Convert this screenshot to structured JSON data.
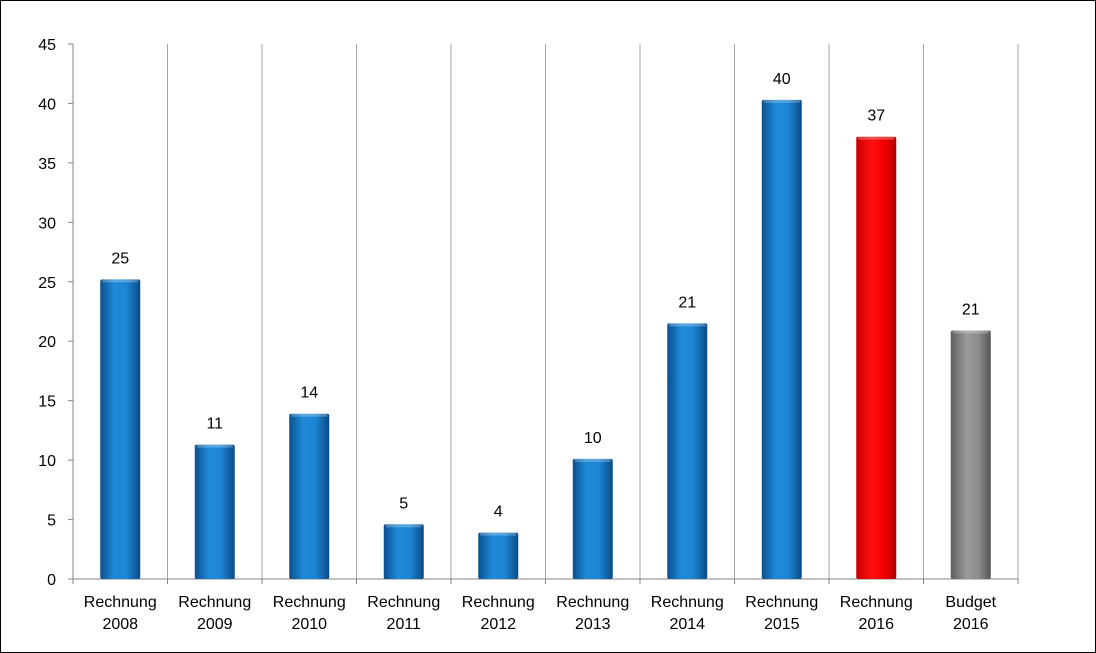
{
  "chart_data": {
    "type": "bar",
    "categories": [
      [
        "Rechnung",
        "2008"
      ],
      [
        "Rechnung",
        "2009"
      ],
      [
        "Rechnung",
        "2010"
      ],
      [
        "Rechnung",
        "2011"
      ],
      [
        "Rechnung",
        "2012"
      ],
      [
        "Rechnung",
        "2013"
      ],
      [
        "Rechnung",
        "2014"
      ],
      [
        "Rechnung",
        "2015"
      ],
      [
        "Rechnung",
        "2016"
      ],
      [
        "Budget",
        "2016"
      ]
    ],
    "values": [
      25.2,
      11.3,
      13.9,
      4.6,
      3.9,
      10.1,
      21.5,
      40.3,
      37.2,
      20.9
    ],
    "data_labels": [
      "25",
      "11",
      "14",
      "5",
      "4",
      "10",
      "21",
      "40",
      "37",
      "21"
    ],
    "bar_colors": [
      "#1a7fd0",
      "#1a7fd0",
      "#1a7fd0",
      "#1a7fd0",
      "#1a7fd0",
      "#1a7fd0",
      "#1a7fd0",
      "#1a7fd0",
      "#ee0000",
      "#8a8a8a"
    ],
    "title": "",
    "xlabel": "",
    "ylabel": "",
    "ylim": [
      0,
      45
    ],
    "yticks": [
      0,
      5,
      10,
      15,
      20,
      25,
      30,
      35,
      40,
      45
    ],
    "grid": "vertical category separators",
    "legend": "none"
  }
}
